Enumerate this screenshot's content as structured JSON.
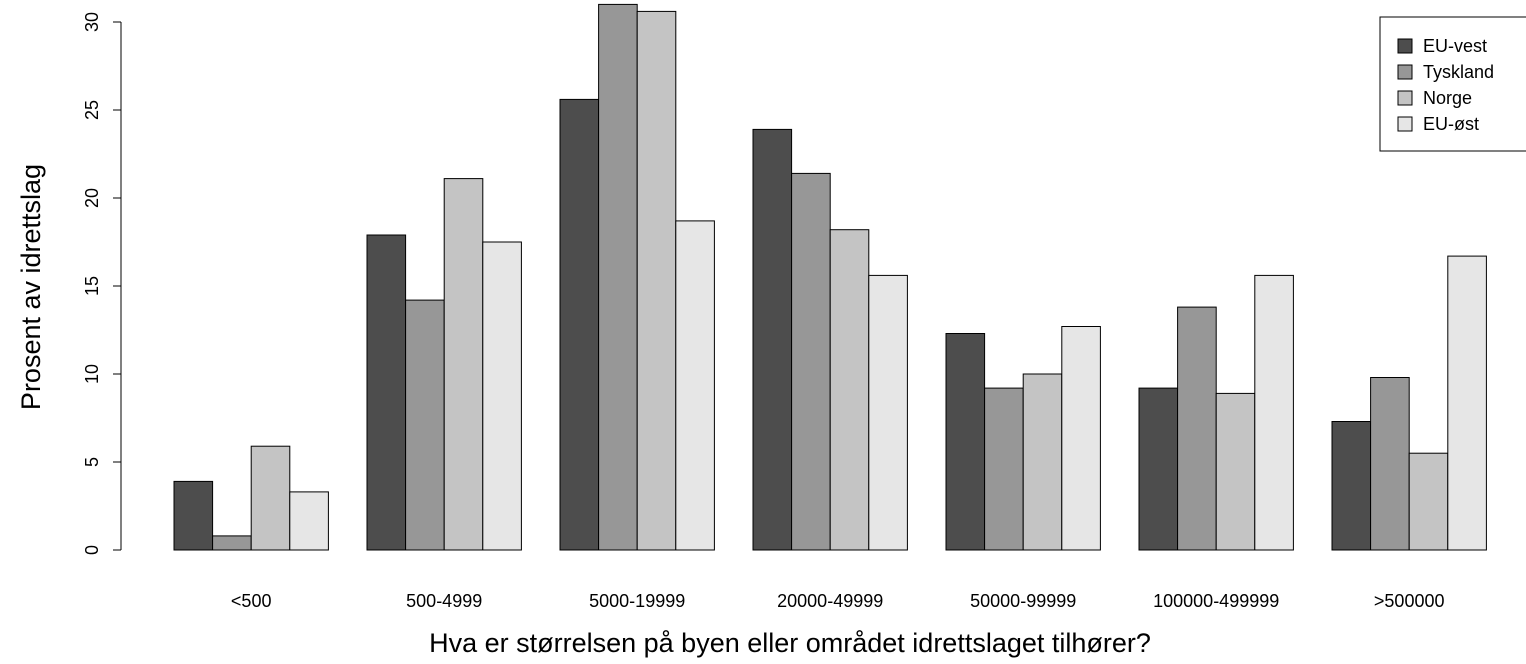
{
  "chart_data": {
    "type": "bar",
    "xlabel": "Hva er størrelsen på byen eller området idrettslaget tilhører?",
    "ylabel": "Prosent av idrettslag",
    "ylim": [
      0,
      30
    ],
    "yticks": [
      "0",
      "5",
      "10",
      "15",
      "20",
      "25",
      "30"
    ],
    "categories": [
      "<500",
      "500-4999",
      "5000-19999",
      "20000-49999",
      "50000-99999",
      "100000-499999",
      ">500000"
    ],
    "series": [
      {
        "name": "EU-vest",
        "color": "#4d4d4d",
        "values": [
          3.9,
          17.9,
          25.6,
          23.9,
          12.3,
          9.2,
          7.3
        ]
      },
      {
        "name": "Tyskland",
        "color": "#979797",
        "values": [
          0.8,
          14.2,
          31.0,
          21.4,
          9.2,
          13.8,
          9.8
        ]
      },
      {
        "name": "Norge",
        "color": "#c4c4c4",
        "values": [
          5.9,
          21.1,
          30.6,
          18.2,
          10.0,
          8.9,
          5.5
        ]
      },
      {
        "name": "EU-øst",
        "color": "#e6e6e6",
        "values": [
          3.3,
          17.5,
          18.7,
          15.6,
          12.7,
          15.6,
          16.7
        ]
      }
    ],
    "legend_position": "top-right",
    "grid": false
  }
}
